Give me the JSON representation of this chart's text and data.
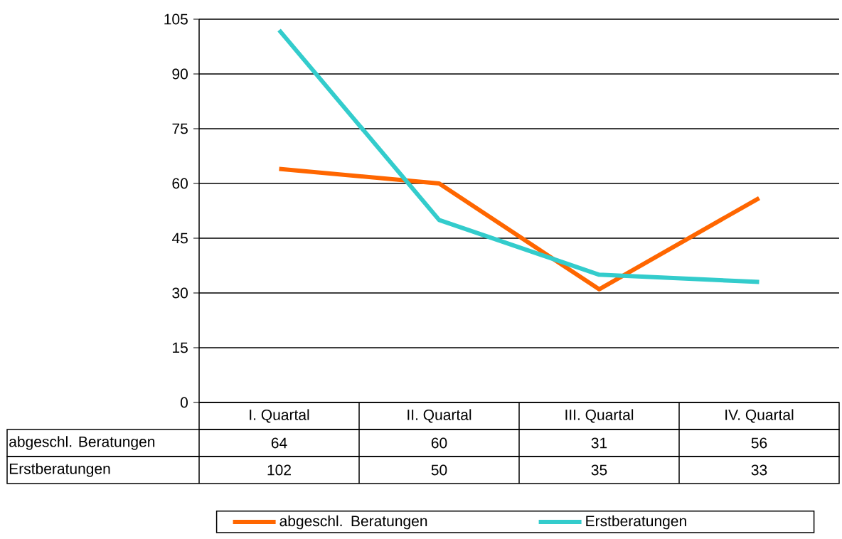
{
  "chart_data": {
    "type": "line",
    "categories": [
      "I. Quartal",
      "II. Quartal",
      "III. Quartal",
      "IV. Quartal"
    ],
    "series": [
      {
        "name": "abgeschl. Beratungen",
        "color": "#ff6600",
        "values": [
          64,
          60,
          31,
          56
        ]
      },
      {
        "name": "Erstberatungen",
        "color": "#33cccc",
        "values": [
          102,
          50,
          35,
          33
        ]
      }
    ],
    "ylim": [
      0,
      105
    ],
    "yticks": [
      0,
      15,
      30,
      45,
      60,
      75,
      90,
      105
    ],
    "grid": "y",
    "legend": "bottom",
    "data_labels": true
  }
}
